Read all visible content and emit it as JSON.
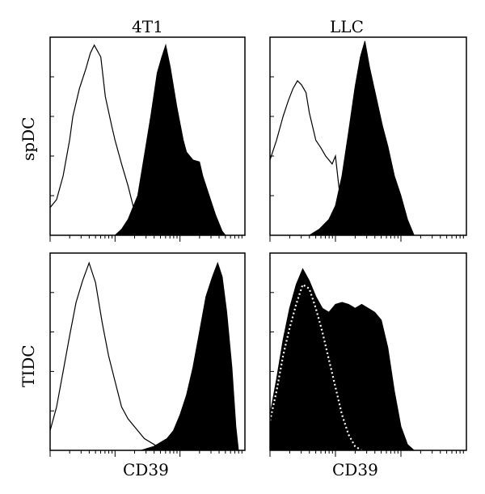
{
  "chart_data": {
    "type": "area",
    "column_titles": [
      "4T1",
      "LLC"
    ],
    "row_labels": [
      "spDC",
      "TIDC"
    ],
    "xlabels": [
      "CD39",
      "CD39"
    ],
    "axis_scale": "log",
    "panels": [
      {
        "row": "spDC",
        "col": "4T1",
        "series": [
          {
            "style": "open-outline",
            "x": [
              0,
              0.1,
              0.2,
              0.3,
              0.35,
              0.45,
              0.55,
              0.62,
              0.68,
              0.78,
              0.85,
              0.95,
              1.0,
              1.1,
              1.2,
              1.3,
              1.45
            ],
            "y": [
              0.14,
              0.18,
              0.3,
              0.48,
              0.6,
              0.74,
              0.84,
              0.92,
              0.96,
              0.9,
              0.7,
              0.55,
              0.48,
              0.36,
              0.25,
              0.12,
              0.0
            ]
          },
          {
            "style": "filled",
            "x": [
              1.0,
              1.1,
              1.2,
              1.35,
              1.45,
              1.55,
              1.65,
              1.72,
              1.78,
              1.85,
              1.95,
              2.05,
              2.1,
              2.2,
              2.3,
              2.35,
              2.45,
              2.55,
              2.65,
              2.7
            ],
            "y": [
              0,
              0.03,
              0.08,
              0.2,
              0.4,
              0.6,
              0.82,
              0.9,
              0.96,
              0.85,
              0.65,
              0.48,
              0.42,
              0.38,
              0.37,
              0.3,
              0.2,
              0.1,
              0.02,
              0
            ]
          }
        ]
      },
      {
        "row": "spDC",
        "col": "LLC",
        "series": [
          {
            "style": "open-outline",
            "x": [
              0,
              0.1,
              0.2,
              0.28,
              0.35,
              0.42,
              0.48,
              0.55,
              0.6,
              0.7,
              0.78,
              0.85,
              0.9,
              0.95,
              1.0,
              1.05,
              1.15
            ],
            "y": [
              0.38,
              0.48,
              0.6,
              0.68,
              0.74,
              0.78,
              0.76,
              0.72,
              0.62,
              0.48,
              0.44,
              0.4,
              0.38,
              0.36,
              0.4,
              0.25,
              0.0
            ]
          },
          {
            "style": "filled",
            "x": [
              0.6,
              0.75,
              0.9,
              1.0,
              1.1,
              1.2,
              1.3,
              1.38,
              1.45,
              1.52,
              1.62,
              1.72,
              1.8,
              1.9,
              2.0,
              2.1,
              2.2
            ],
            "y": [
              0,
              0.03,
              0.08,
              0.15,
              0.3,
              0.52,
              0.75,
              0.9,
              0.98,
              0.85,
              0.7,
              0.55,
              0.45,
              0.3,
              0.2,
              0.08,
              0
            ]
          }
        ]
      },
      {
        "row": "TIDC",
        "col": "4T1",
        "series": [
          {
            "style": "open-outline",
            "x": [
              0,
              0.1,
              0.2,
              0.3,
              0.4,
              0.5,
              0.6,
              0.7,
              0.8,
              0.9,
              1.0,
              1.1,
              1.2,
              1.3,
              1.45,
              1.6,
              1.75
            ],
            "y": [
              0.1,
              0.22,
              0.4,
              0.58,
              0.75,
              0.86,
              0.95,
              0.85,
              0.65,
              0.48,
              0.35,
              0.22,
              0.16,
              0.12,
              0.06,
              0.03,
              0.0
            ]
          },
          {
            "style": "filled",
            "x": [
              1.4,
              1.6,
              1.8,
              1.9,
              2.0,
              2.1,
              2.2,
              2.3,
              2.4,
              2.5,
              2.58,
              2.65,
              2.72,
              2.8,
              2.86,
              2.9
            ],
            "y": [
              0,
              0.02,
              0.06,
              0.1,
              0.18,
              0.28,
              0.42,
              0.6,
              0.78,
              0.88,
              0.95,
              0.88,
              0.7,
              0.42,
              0.12,
              0
            ]
          }
        ]
      },
      {
        "row": "TIDC",
        "col": "LLC",
        "series": [
          {
            "style": "dotted-outline",
            "x": [
              0,
              0.1,
              0.2,
              0.3,
              0.4,
              0.5,
              0.6,
              0.7,
              0.8,
              0.9,
              1.0,
              1.1,
              1.2,
              1.3,
              1.4
            ],
            "y": [
              0.15,
              0.3,
              0.48,
              0.62,
              0.74,
              0.84,
              0.82,
              0.72,
              0.6,
              0.46,
              0.32,
              0.18,
              0.08,
              0.02,
              0
            ]
          },
          {
            "style": "filled",
            "x": [
              0,
              0.1,
              0.2,
              0.3,
              0.4,
              0.5,
              0.6,
              0.7,
              0.8,
              0.9,
              1.0,
              1.1,
              1.2,
              1.3,
              1.4,
              1.5,
              1.6,
              1.7,
              1.8,
              1.9,
              2.0,
              2.1,
              2.2,
              2.3,
              2.4,
              2.5
            ],
            "y": [
              0.18,
              0.36,
              0.56,
              0.72,
              0.84,
              0.92,
              0.86,
              0.78,
              0.72,
              0.7,
              0.74,
              0.75,
              0.74,
              0.72,
              0.74,
              0.72,
              0.7,
              0.66,
              0.52,
              0.3,
              0.12,
              0.03,
              0,
              0,
              0,
              0
            ]
          }
        ]
      }
    ]
  }
}
